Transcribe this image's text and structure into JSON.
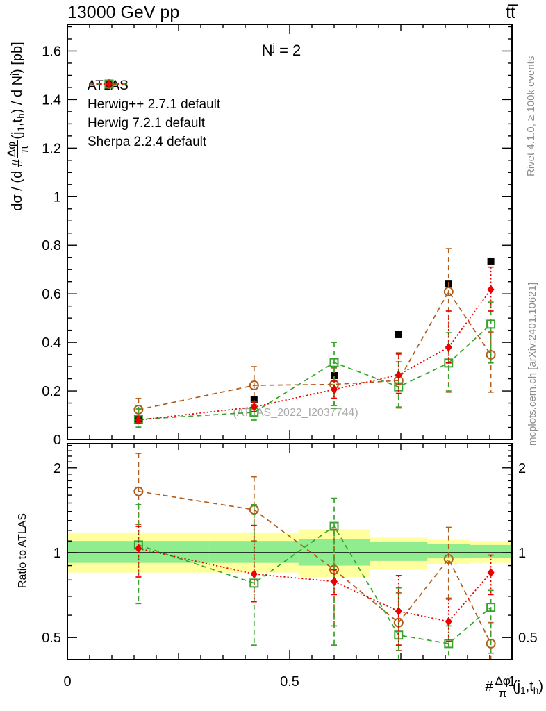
{
  "header": {
    "left": "13000 GeV pp",
    "right": "tt̅"
  },
  "annotation": {
    "base": "N",
    "sup": "j",
    "rest": " = 2"
  },
  "watermark": "(ATLAS_2022_I2037744)",
  "side_notes": {
    "right_top": "Rivet 4.1.0, ≥ 100k events",
    "right_bottom": "mcplots.cern.ch [arXiv:2401.10621]"
  },
  "axis_labels": {
    "y_main": {
      "prefix": "dσ / (d #",
      "frac_num": "Δφ",
      "frac_den": "π",
      "args_open": "(j",
      "arg_sub1": "1",
      "args_mid": ",t",
      "arg_sub2": "h",
      "mid": ") / d N",
      "sup": "j",
      "suffix": ") [pb]"
    },
    "y_ratio": "Ratio to ATLAS",
    "x": {
      "hash": "#",
      "frac_num": "Δφ",
      "frac_den": "π",
      "args_open": "(j",
      "arg_sub1": "1",
      "args_mid": ",t",
      "arg_sub2": "h",
      "close": ")"
    }
  },
  "legend": {
    "items": [
      {
        "label": "ATLAS",
        "marker": "filled-square",
        "color": "#000000",
        "line": "none"
      },
      {
        "label": "Herwig++ 2.7.1 default",
        "marker": "open-circle",
        "color": "#b05c1a",
        "line": "dashed"
      },
      {
        "label": "Herwig 7.2.1 default",
        "marker": "open-square",
        "color": "#37a32d",
        "line": "dashed"
      },
      {
        "label": "Sherpa 2.2.4 default",
        "marker": "filled-diamond",
        "color": "#ee0000",
        "line": "dotted"
      }
    ]
  },
  "chart_data": {
    "type": "scatter",
    "title": "13000 GeV pp, tt̅, N^j = 2",
    "xlabel": "#Δφ/π(j1,th)",
    "ylabel_top": "dσ / (d #Δφ/π(j1,th) / d N^j) [pb]",
    "ylabel_bottom": "Ratio to ATLAS",
    "xlim": [
      0,
      1
    ],
    "x_ticks": {
      "major": [
        {
          "v": 0,
          "label": "0"
        },
        {
          "v": 0.5,
          "label": "0.5"
        },
        {
          "v": 1,
          "label": "1"
        }
      ],
      "mid_step": 0.25,
      "minor_step": 0.05
    },
    "x": [
      0.16,
      0.42,
      0.6,
      0.745,
      0.8575,
      0.9525
    ],
    "top_panel": {
      "ylim": [
        0,
        1.71
      ],
      "y_ticks": {
        "major": [
          {
            "v": 0,
            "label": "0"
          },
          {
            "v": 0.2,
            "label": "0.2"
          },
          {
            "v": 0.4,
            "label": "0.4"
          },
          {
            "v": 0.6,
            "label": "0.6"
          },
          {
            "v": 0.8,
            "label": "0.8"
          },
          {
            "v": 1,
            "label": "1"
          },
          {
            "v": 1.2,
            "label": "1.2"
          },
          {
            "v": 1.4,
            "label": "1.4"
          },
          {
            "v": 1.6,
            "label": "1.6"
          }
        ],
        "minor_step": 0.05
      },
      "series": [
        {
          "name": "ATLAS",
          "color": "#000000",
          "marker": "filled-square",
          "line": "none",
          "y": [
            0.085,
            0.163,
            0.263,
            0.432,
            0.643,
            0.735
          ]
        },
        {
          "name": "Herwig++ 2.7.1 default",
          "color": "#b05c1a",
          "marker": "open-circle",
          "line": "dashed",
          "y": [
            0.123,
            0.223,
            0.227,
            0.243,
            0.609,
            0.349
          ],
          "y_lo": [
            0.077,
            0.143,
            0.14,
            0.13,
            0.195,
            0.195
          ],
          "y_hi": [
            0.169,
            0.3,
            0.295,
            0.357,
            0.786,
            0.443
          ]
        },
        {
          "name": "Herwig 7.2.1 default",
          "color": "#37a32d",
          "marker": "open-square",
          "line": "dashed",
          "y": [
            0.083,
            0.112,
            0.317,
            0.217,
            0.315,
            0.475
          ],
          "y_lo": [
            0.051,
            0.08,
            0.129,
            0.134,
            0.2,
            0.315
          ],
          "y_hi": [
            0.126,
            0.155,
            0.4,
            0.32,
            0.44,
            0.566
          ]
        },
        {
          "name": "Sherpa 2.2.4 default",
          "color": "#ee0000",
          "marker": "filled-diamond",
          "line": "dotted",
          "y": [
            0.08,
            0.134,
            0.206,
            0.266,
            0.38,
            0.618
          ],
          "y_lo": [
            0.068,
            0.115,
            0.17,
            0.19,
            0.315,
            0.529
          ],
          "y_hi": [
            0.092,
            0.155,
            0.24,
            0.352,
            0.529,
            0.71
          ]
        }
      ]
    },
    "ratio_panel": {
      "scale": "log",
      "ylim": [
        0.42,
        2.44
      ],
      "y_ticks": {
        "major": [
          {
            "v": 2,
            "label": "2"
          },
          {
            "v": 1,
            "label": "1"
          },
          {
            "v": 0.5,
            "label": "0.5"
          }
        ],
        "minor": [
          0.6,
          0.7,
          0.8,
          0.9,
          1.1,
          1.2,
          1.3,
          1.4,
          1.5,
          1.6,
          1.7,
          1.8,
          1.9,
          2.1,
          2.2,
          2.3,
          2.4
        ]
      },
      "bands": {
        "yellow_color": "#ffff9e",
        "green_color": "#8fec8f",
        "bin_edges": [
          0,
          0.32,
          0.52,
          0.68,
          0.81,
          0.905,
          1.0
        ],
        "yellow": [
          [
            0.85,
            1.18
          ],
          [
            0.85,
            1.18
          ],
          [
            0.82,
            1.21
          ],
          [
            0.87,
            1.13
          ],
          [
            0.91,
            1.11
          ],
          [
            0.92,
            1.1
          ]
        ],
        "green": [
          [
            0.92,
            1.1
          ],
          [
            0.92,
            1.1
          ],
          [
            0.9,
            1.12
          ],
          [
            0.935,
            1.09
          ],
          [
            0.955,
            1.075
          ],
          [
            0.96,
            1.065
          ]
        ]
      },
      "series": [
        {
          "name": "Herwig++ 2.7.1 default",
          "color": "#b05c1a",
          "marker": "open-circle",
          "line": "dashed",
          "r": [
            1.65,
            1.42,
            0.87,
            0.565,
            0.95,
            0.476
          ],
          "r_lo": [
            1.26,
            1.1,
            0.55,
            0.45,
            0.69,
            0.4
          ],
          "r_hi": [
            2.25,
            1.86,
            1.21,
            0.72,
            1.23,
            0.565
          ]
        },
        {
          "name": "Herwig 7.2.1 default",
          "color": "#37a32d",
          "marker": "open-square",
          "line": "dashed",
          "r": [
            1.065,
            0.78,
            1.24,
            0.51,
            0.476,
            0.64
          ],
          "r_lo": [
            0.66,
            0.47,
            0.47,
            0.38,
            0.4,
            0.44
          ],
          "r_hi": [
            1.48,
            1.48,
            1.56,
            0.75,
            0.55,
            0.735
          ]
        },
        {
          "name": "Sherpa 2.2.4 default",
          "color": "#ee0000",
          "marker": "filled-diamond",
          "line": "dotted",
          "r": [
            1.035,
            0.84,
            0.79,
            0.62,
            0.57,
            0.85
          ],
          "r_lo": [
            0.82,
            0.67,
            0.71,
            0.47,
            0.485,
            0.71
          ],
          "r_hi": [
            1.24,
            1.25,
            0.87,
            0.83,
            0.685,
            0.98
          ]
        }
      ]
    }
  }
}
